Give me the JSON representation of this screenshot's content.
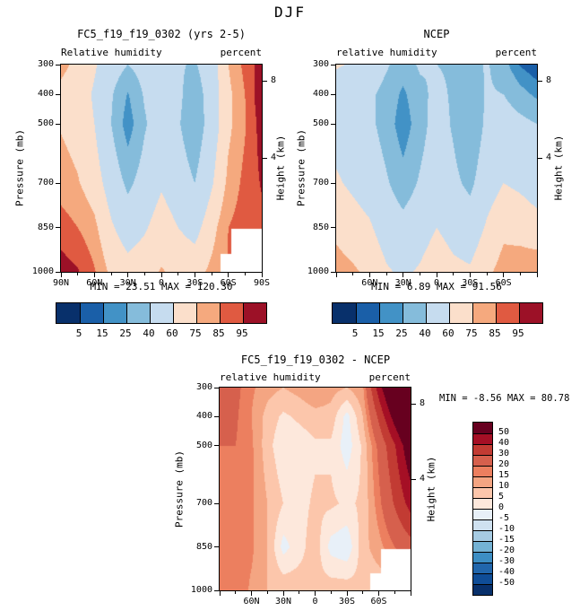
{
  "page_title": "DJF",
  "colors": {
    "background": "#ffffff",
    "text": "#000000",
    "frame": "#000000",
    "missing": "#ffffff",
    "main_palette": [
      "#08306b",
      "#1a5fa8",
      "#4292c6",
      "#85bcdb",
      "#c6dcef",
      "#fbdfcb",
      "#f5a97e",
      "#e05a41",
      "#9c1127"
    ],
    "diff_palette": [
      "#08306b",
      "#0f4d97",
      "#2166ac",
      "#3d8ec4",
      "#74b2d4",
      "#a6cbe3",
      "#cfe1f0",
      "#e8f0f8",
      "#fde8dc",
      "#fcc6ab",
      "#f4a582",
      "#ec7f5f",
      "#d6604d",
      "#c23b33",
      "#a50f25",
      "#67001f"
    ]
  },
  "chart_data": [
    {
      "id": "model",
      "type": "heatmap",
      "title": "FC5_f19_f19_0302 (yrs 2-5)",
      "subtitle_left": "Relative humidity",
      "subtitle_right": "percent",
      "ylabel_left": "Pressure (mb)",
      "ylabel_right": "Height (km)",
      "min_max_label": "MIN =  23.51  MAX =  120.30",
      "min": 23.51,
      "max": 120.3,
      "levels": [
        5,
        15,
        25,
        40,
        60,
        75,
        85,
        95
      ],
      "palette_ref": "main_palette",
      "colorbar_labels": [
        "5",
        "15",
        "25",
        "40",
        "60",
        "75",
        "85",
        "95"
      ],
      "x_ticks": [
        {
          "lat": 90,
          "label": "90N"
        },
        {
          "lat": 60,
          "label": "60N"
        },
        {
          "lat": 30,
          "label": "30N"
        },
        {
          "lat": 0,
          "label": "0"
        },
        {
          "lat": -30,
          "label": "30S"
        },
        {
          "lat": -60,
          "label": "60S"
        },
        {
          "lat": -90,
          "label": "90S"
        }
      ],
      "y_ticks": [
        {
          "p": 300,
          "label": "300"
        },
        {
          "p": 400,
          "label": "400"
        },
        {
          "p": 500,
          "label": "500"
        },
        {
          "p": 700,
          "label": "700"
        },
        {
          "p": 850,
          "label": "850"
        },
        {
          "p": 1000,
          "label": "1000"
        }
      ],
      "height_ticks": [
        {
          "p": 356,
          "label": "8"
        },
        {
          "p": 616,
          "label": "4"
        }
      ],
      "lats": [
        90,
        75,
        60,
        45,
        30,
        15,
        0,
        -15,
        -30,
        -45,
        -60,
        -75,
        -90
      ],
      "plevs": [
        300,
        400,
        500,
        700,
        850,
        1000
      ],
      "grid": [
        [
          78,
          72,
          62,
          50,
          40,
          48,
          45,
          42,
          38,
          52,
          75,
          88,
          100
        ],
        [
          72,
          68,
          58,
          42,
          24,
          42,
          48,
          44,
          30,
          50,
          72,
          85,
          103
        ],
        [
          74,
          70,
          60,
          40,
          18,
          38,
          52,
          42,
          27,
          50,
          72,
          84,
          100
        ],
        [
          80,
          76,
          68,
          52,
          36,
          48,
          58,
          50,
          40,
          58,
          78,
          88,
          96
        ],
        [
          90,
          85,
          78,
          62,
          52,
          58,
          68,
          60,
          54,
          70,
          85,
          90,
          92
        ],
        [
          100,
          96,
          86,
          72,
          66,
          70,
          76,
          72,
          70,
          78,
          86,
          88,
          90
        ]
      ],
      "mask": [
        {
          "lat_from": -90,
          "lat_to": -63,
          "p_from": 856,
          "p_to": 1001
        },
        {
          "lat_from": -90,
          "lat_to": -53,
          "p_from": 938,
          "p_to": 1001
        }
      ]
    },
    {
      "id": "ncep",
      "type": "heatmap",
      "title": "NCEP",
      "subtitle_left": "relative humidity",
      "subtitle_right": "percent",
      "ylabel_left": "Pressure (mb)",
      "ylabel_right": "Height (km)",
      "min_max_label": "MIN =   6.89  MAX =  91.56",
      "min": 6.89,
      "max": 91.56,
      "levels": [
        5,
        15,
        25,
        40,
        60,
        75,
        85,
        95
      ],
      "palette_ref": "main_palette",
      "colorbar_labels": [
        "5",
        "15",
        "25",
        "40",
        "60",
        "75",
        "85",
        "95"
      ],
      "x_ticks": [
        {
          "lat": 60,
          "label": "60N"
        },
        {
          "lat": 30,
          "label": "30N"
        },
        {
          "lat": 0,
          "label": "0"
        },
        {
          "lat": -30,
          "label": "30S"
        },
        {
          "lat": -60,
          "label": "60S"
        }
      ],
      "y_ticks": [
        {
          "p": 300,
          "label": "300"
        },
        {
          "p": 400,
          "label": "400"
        },
        {
          "p": 500,
          "label": "500"
        },
        {
          "p": 700,
          "label": "700"
        },
        {
          "p": 850,
          "label": "850"
        },
        {
          "p": 1000,
          "label": "1000"
        }
      ],
      "height_ticks": [
        {
          "p": 356,
          "label": "8"
        },
        {
          "p": 616,
          "label": "4"
        }
      ],
      "lats": [
        90,
        75,
        60,
        45,
        30,
        15,
        0,
        -15,
        -30,
        -45,
        -60,
        -75,
        -90
      ],
      "plevs": [
        300,
        400,
        500,
        700,
        850,
        1000
      ],
      "grid": [
        [
          62,
          58,
          50,
          42,
          33,
          42,
          40,
          38,
          33,
          42,
          30,
          14,
          7
        ],
        [
          50,
          47,
          43,
          35,
          22,
          36,
          44,
          38,
          27,
          42,
          40,
          30,
          22
        ],
        [
          54,
          50,
          44,
          33,
          17,
          33,
          48,
          38,
          25,
          44,
          50,
          45,
          40
        ],
        [
          62,
          57,
          52,
          42,
          31,
          42,
          52,
          44,
          36,
          52,
          60,
          57,
          52
        ],
        [
          72,
          67,
          62,
          52,
          46,
          52,
          60,
          54,
          50,
          62,
          72,
          70,
          66
        ],
        [
          80,
          77,
          72,
          62,
          57,
          62,
          70,
          64,
          62,
          72,
          80,
          82,
          84
        ]
      ],
      "mask": []
    },
    {
      "id": "diff",
      "type": "heatmap",
      "title": "FC5_f19_f19_0302 - NCEP",
      "subtitle_left": "relative humidity",
      "subtitle_right": "percent",
      "ylabel_left": "Pressure (mb)",
      "ylabel_right": "Height (km)",
      "min_max_label": "MIN =  -8.56  MAX =  80.78",
      "min": -8.56,
      "max": 80.78,
      "levels": [
        -50,
        -40,
        -30,
        -20,
        -15,
        -10,
        -5,
        0,
        5,
        10,
        15,
        20,
        30,
        40,
        50
      ],
      "palette_ref": "diff_palette",
      "colorbar_labels": [
        "50",
        "40",
        "30",
        "20",
        "15",
        "10",
        "5",
        "0",
        "-5",
        "-10",
        "-15",
        "-20",
        "-30",
        "-40",
        "-50"
      ],
      "x_ticks": [
        {
          "lat": 60,
          "label": "60N"
        },
        {
          "lat": 30,
          "label": "30N"
        },
        {
          "lat": 0,
          "label": "0"
        },
        {
          "lat": -30,
          "label": "30S"
        },
        {
          "lat": -60,
          "label": "60S"
        }
      ],
      "y_ticks": [
        {
          "p": 300,
          "label": "300"
        },
        {
          "p": 400,
          "label": "400"
        },
        {
          "p": 500,
          "label": "500"
        },
        {
          "p": 700,
          "label": "700"
        },
        {
          "p": 850,
          "label": "850"
        },
        {
          "p": 1000,
          "label": "1000"
        }
      ],
      "height_ticks": [
        {
          "p": 356,
          "label": "8"
        },
        {
          "p": 616,
          "label": "4"
        }
      ],
      "lats": [
        90,
        75,
        60,
        45,
        30,
        15,
        0,
        -15,
        -30,
        -45,
        -60,
        -75,
        -90
      ],
      "plevs": [
        300,
        400,
        500,
        700,
        850,
        1000
      ],
      "grid": [
        [
          26,
          22,
          16,
          12,
          10,
          12,
          15,
          12,
          10,
          14,
          45,
          70,
          78
        ],
        [
          22,
          21,
          15,
          8,
          4,
          6,
          8,
          8,
          -2,
          10,
          32,
          55,
          75
        ],
        [
          20,
          20,
          16,
          7,
          1,
          2,
          4,
          4,
          -3,
          6,
          22,
          39,
          60
        ],
        [
          18,
          19,
          16,
          10,
          5,
          3,
          6,
          6,
          4,
          6,
          18,
          31,
          44
        ],
        [
          18,
          18,
          16,
          10,
          -2,
          3,
          8,
          -2,
          -4,
          8,
          13,
          20,
          26
        ],
        [
          20,
          19,
          14,
          10,
          9,
          8,
          6,
          8,
          8,
          6,
          6,
          6,
          6
        ]
      ],
      "mask": [
        {
          "lat_from": -90,
          "lat_to": -62,
          "p_from": 858,
          "p_to": 1001
        },
        {
          "lat_from": -90,
          "lat_to": -52,
          "p_from": 940,
          "p_to": 1001
        }
      ]
    }
  ]
}
